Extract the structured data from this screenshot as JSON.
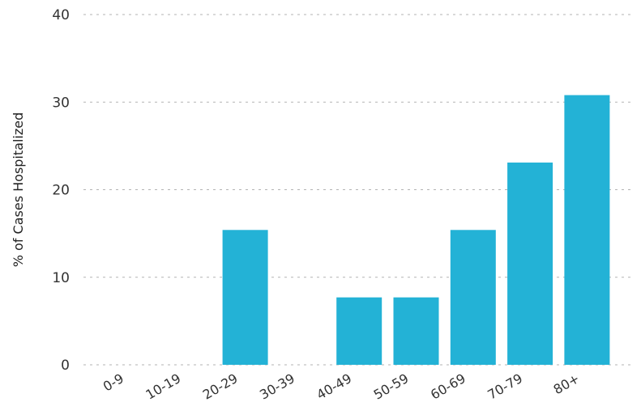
{
  "chart_data": {
    "type": "bar",
    "title": "",
    "xlabel": "",
    "ylabel": "% of Cases Hospitalized",
    "categories": [
      "0-9",
      "10-19",
      "20-29",
      "30-39",
      "40-49",
      "50-59",
      "60-69",
      "70-79",
      "80+"
    ],
    "values": [
      0,
      0,
      15.4,
      0,
      7.7,
      7.7,
      15.4,
      23.1,
      30.8
    ],
    "ylim": [
      0,
      40
    ],
    "yticks": [
      0,
      10,
      20,
      30,
      40
    ],
    "grid": true,
    "legend": "none",
    "bar_color": "#23b2d6"
  }
}
